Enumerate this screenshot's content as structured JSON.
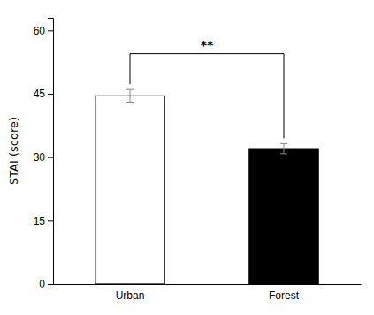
{
  "chart_data": {
    "type": "bar",
    "categories": [
      "Urban",
      "Forest"
    ],
    "values": [
      44.5,
      32.0
    ],
    "errors": [
      1.5,
      1.2
    ],
    "colors": [
      "#ffffff",
      "#000000"
    ],
    "ylabel": "STAI (score)",
    "ylim": [
      0,
      63
    ],
    "yticks": [
      0,
      15,
      30,
      45,
      60
    ],
    "grid": false,
    "annotations": [
      {
        "text": "**",
        "y": 55.5,
        "bracket_y": 54.5
      }
    ]
  }
}
